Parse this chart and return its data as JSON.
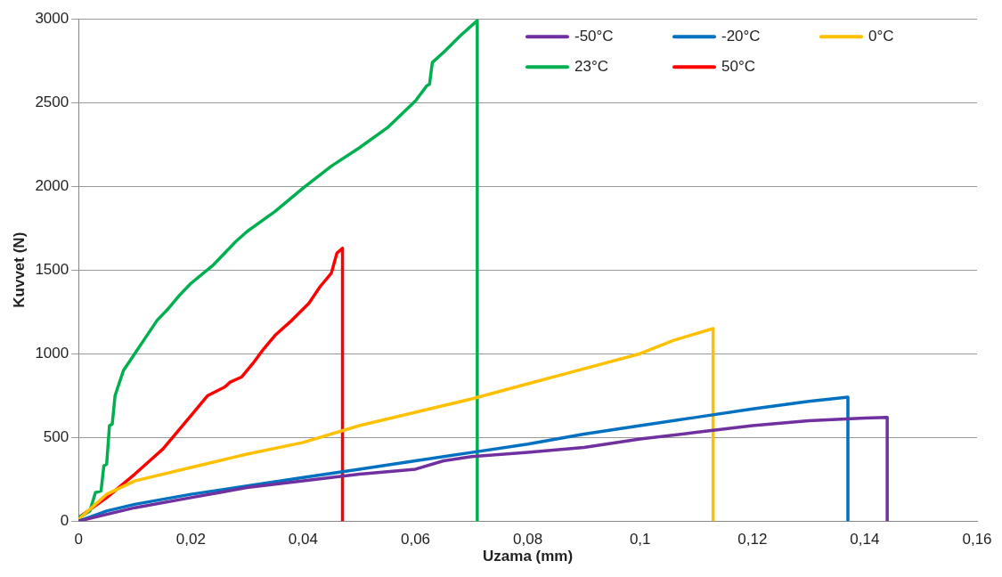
{
  "chart_data": {
    "type": "line",
    "xlabel": "Uzama (mm)",
    "ylabel": "Kuvvet (N)",
    "xlim": [
      0,
      0.16
    ],
    "ylim": [
      0,
      3000
    ],
    "xticks": [
      0,
      {
        "value": 0.02,
        "label": "0,02"
      },
      {
        "value": 0.04,
        "label": "0,04"
      },
      {
        "value": 0.06,
        "label": "0,06"
      },
      {
        "value": 0.08,
        "label": "0,08"
      },
      {
        "value": 0.1,
        "label": "0,1"
      },
      {
        "value": 0.12,
        "label": "0,12"
      },
      {
        "value": 0.14,
        "label": "0,14"
      },
      {
        "value": 0.16,
        "label": "0,16"
      }
    ],
    "yticks": [
      0,
      500,
      1000,
      1500,
      2000,
      2500,
      3000
    ],
    "grid": "y",
    "legend": "top right",
    "marker": "none",
    "line_style": "solid",
    "series": [
      {
        "name": "-50°C",
        "color": "#7030a0",
        "x": [
          0,
          0.01,
          0.02,
          0.03,
          0.04,
          0.05,
          0.06,
          0.065,
          0.07,
          0.08,
          0.09,
          0.1,
          0.11,
          0.12,
          0.13,
          0.14,
          0.144,
          0.144
        ],
        "values": [
          0,
          80,
          140,
          200,
          240,
          280,
          310,
          360,
          385,
          410,
          440,
          490,
          530,
          570,
          600,
          615,
          620,
          0
        ]
      },
      {
        "name": "-20°C",
        "color": "#0070c0",
        "x": [
          0,
          0.005,
          0.01,
          0.02,
          0.03,
          0.04,
          0.05,
          0.06,
          0.07,
          0.08,
          0.09,
          0.1,
          0.11,
          0.12,
          0.13,
          0.137,
          0.137
        ],
        "values": [
          0,
          60,
          100,
          160,
          210,
          260,
          310,
          360,
          410,
          460,
          520,
          570,
          620,
          670,
          715,
          740,
          0
        ]
      },
      {
        "name": "0°C",
        "color": "#ffc000",
        "x": [
          0,
          0.005,
          0.01,
          0.02,
          0.03,
          0.04,
          0.05,
          0.06,
          0.07,
          0.08,
          0.09,
          0.1,
          0.106,
          0.113,
          0.113
        ],
        "values": [
          10,
          160,
          240,
          320,
          400,
          470,
          570,
          650,
          730,
          820,
          910,
          1000,
          1080,
          1150,
          0
        ]
      },
      {
        "name": "23°C",
        "color": "#00b050",
        "x": [
          0,
          0.002,
          0.003,
          0.004,
          0.0045,
          0.005,
          0.0055,
          0.006,
          0.0065,
          0.007,
          0.008,
          0.01,
          0.012,
          0.014,
          0.016,
          0.018,
          0.02,
          0.024,
          0.028,
          0.03,
          0.035,
          0.04,
          0.045,
          0.05,
          0.055,
          0.06,
          0.062,
          0.0625,
          0.063,
          0.065,
          0.068,
          0.071,
          0.071
        ],
        "values": [
          20,
          60,
          170,
          180,
          330,
          340,
          570,
          580,
          750,
          800,
          900,
          1000,
          1100,
          1200,
          1270,
          1350,
          1420,
          1530,
          1670,
          1730,
          1850,
          1990,
          2120,
          2230,
          2350,
          2510,
          2600,
          2610,
          2740,
          2800,
          2900,
          2990,
          0
        ]
      },
      {
        "name": "50°C",
        "color": "#ff0000",
        "x": [
          0,
          0.005,
          0.01,
          0.015,
          0.02,
          0.023,
          0.026,
          0.027,
          0.029,
          0.031,
          0.033,
          0.035,
          0.038,
          0.041,
          0.043,
          0.045,
          0.046,
          0.047,
          0.047
        ],
        "values": [
          20,
          140,
          280,
          430,
          630,
          750,
          800,
          830,
          860,
          940,
          1030,
          1110,
          1200,
          1300,
          1400,
          1480,
          1600,
          1630,
          0
        ]
      }
    ]
  }
}
